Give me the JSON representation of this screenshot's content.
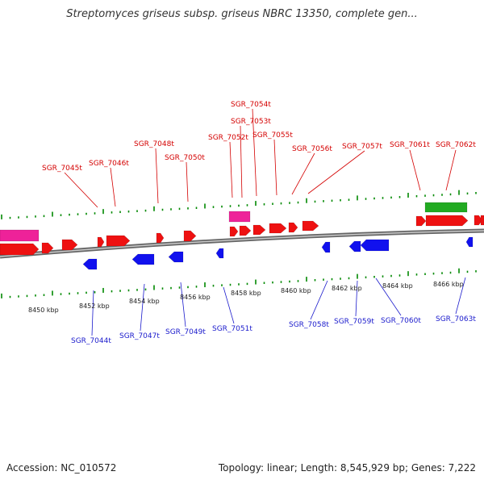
{
  "title": "Streptomyces griseus subsp. griseus NBRC 13350, complete gen...",
  "accession": "Accession: NC_010572",
  "summary": "Topology: linear; Length: 8,545,929 bp; Genes: 7,222",
  "colors": {
    "forward_gene": "#ee1111",
    "reverse_gene": "#1111ee",
    "rrna": "#ee2299",
    "misc": "#22aa22",
    "forward_label": "#d40000",
    "reverse_label": "#1a1acc",
    "tick_top": "#008800",
    "tick_bottom": "#008800",
    "backbone": "#888888"
  },
  "axis": {
    "unit": "kbp",
    "ticks": [
      {
        "kbp": 8450,
        "label": "8450 kbp"
      },
      {
        "kbp": 8452,
        "label": "8452 kbp"
      },
      {
        "kbp": 8454,
        "label": "8454 kbp"
      },
      {
        "kbp": 8456,
        "label": "8456 kbp"
      },
      {
        "kbp": 8458,
        "label": "8458 kbp"
      },
      {
        "kbp": 8460,
        "label": "8460 kbp"
      },
      {
        "kbp": 8462,
        "label": "8462 kbp"
      },
      {
        "kbp": 8464,
        "label": "8464 kbp"
      },
      {
        "kbp": 8466,
        "label": "8466 kbp"
      }
    ]
  },
  "genes_forward": [
    {
      "label": "SGR_7045t"
    },
    {
      "label": "SGR_7046t"
    },
    {
      "label": "SGR_7048t"
    },
    {
      "label": "SGR_7050t"
    },
    {
      "label": "SGR_7052t"
    },
    {
      "label": "SGR_7053t"
    },
    {
      "label": "SGR_7054t"
    },
    {
      "label": "SGR_7055t"
    },
    {
      "label": "SGR_7056t"
    },
    {
      "label": "SGR_7057t"
    },
    {
      "label": "SGR_7061t"
    },
    {
      "label": "SGR_7062t"
    }
  ],
  "genes_reverse": [
    {
      "label": "SGR_7044t"
    },
    {
      "label": "SGR_7047t"
    },
    {
      "label": "SGR_7049t"
    },
    {
      "label": "SGR_7051t"
    },
    {
      "label": "SGR_7058t"
    },
    {
      "label": "SGR_7059t"
    },
    {
      "label": "SGR_7060t"
    },
    {
      "label": "SGR_7063t"
    }
  ]
}
